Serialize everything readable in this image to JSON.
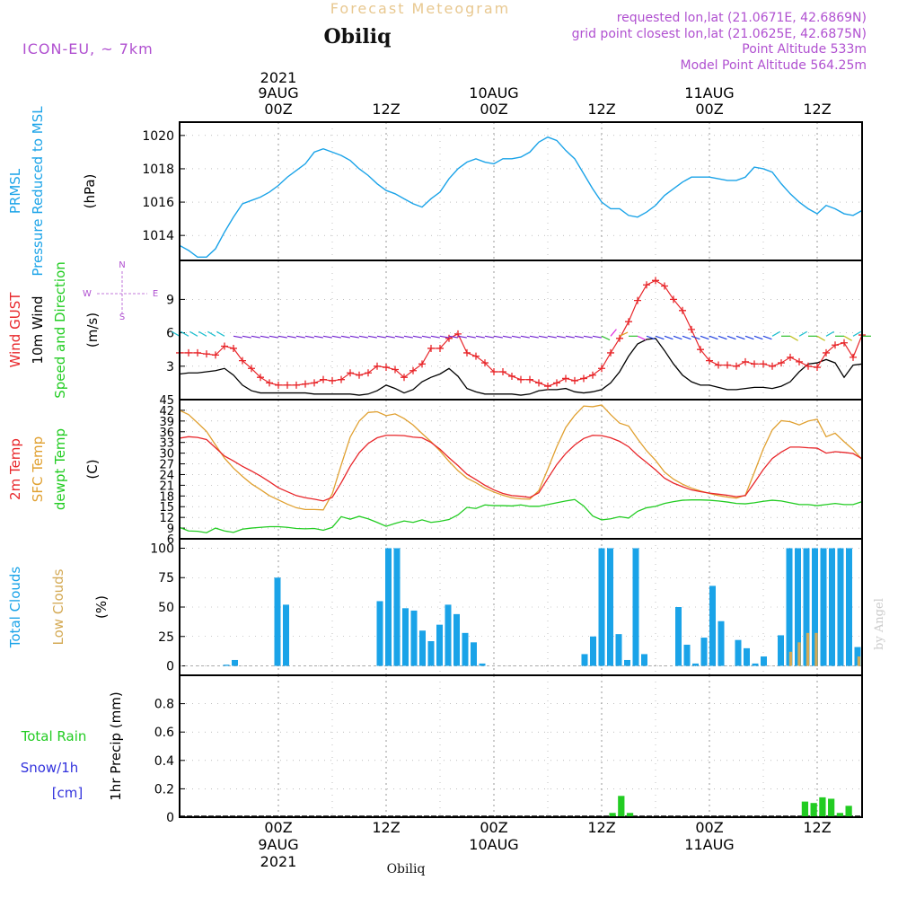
{
  "header": {
    "title": "Forecast Meteogram",
    "location": "Obiliq",
    "model": "ICON-EU, ~ 7km",
    "requested": "requested lon,lat (21.0671E, 42.6869N)",
    "grid_point": "grid point closest lon,lat (21.0625E, 42.6875N)",
    "point_altitude": "Point Altitude 533m",
    "model_altitude": "Model Point Altitude 564.25m",
    "footer_location": "Obiliq",
    "credit": "by Angel"
  },
  "colors": {
    "pressure": "#1aa3e8",
    "gust": "#e8262a",
    "wind": "#000000",
    "sfc_temp": "#e0a030",
    "temp2m": "#e8262a",
    "dewpt": "#22cc22",
    "total_cloud": "#1aa3e8",
    "low_cloud": "#d4aa55",
    "rain": "#22cc22",
    "snow": "#3333dd",
    "purple": "#b050d0"
  },
  "chart_data": {
    "time_axis": {
      "top_labels": [
        {
          "line1": "2021",
          "line2": "9AUG",
          "line3": "00Z",
          "hour": 0
        },
        {
          "line1": "",
          "line2": "",
          "line3": "12Z",
          "hour": 12
        },
        {
          "line1": "",
          "line2": "10AUG",
          "line3": "00Z",
          "hour": 24
        },
        {
          "line1": "",
          "line2": "",
          "line3": "12Z",
          "hour": 36
        },
        {
          "line1": "",
          "line2": "11AUG",
          "line3": "00Z",
          "hour": 48
        },
        {
          "line1": "",
          "line2": "",
          "line3": "12Z",
          "hour": 60
        }
      ],
      "bottom_labels": [
        {
          "line1": "00Z",
          "line2": "9AUG",
          "line3": "2021",
          "hour": 0
        },
        {
          "line1": "12Z",
          "line2": "",
          "line3": "",
          "hour": 12
        },
        {
          "line1": "00Z",
          "line2": "10AUG",
          "line3": "",
          "hour": 24
        },
        {
          "line1": "12Z",
          "line2": "",
          "line3": "",
          "hour": 36
        },
        {
          "line1": "00Z",
          "line2": "11AUG",
          "line3": "",
          "hour": 48
        },
        {
          "line1": "12Z",
          "line2": "",
          "line3": "",
          "hour": 60
        }
      ],
      "start_hour": -11,
      "end_hour": 65
    },
    "panels": [
      {
        "id": "pressure",
        "type": "line",
        "labels": [
          "PRMSL",
          "Pressure Reduced to MSL"
        ],
        "unit": "(hPa)",
        "ylim": [
          1012.5,
          1020.8
        ],
        "yticks": [
          1014,
          1016,
          1018,
          1020
        ],
        "series": [
          {
            "x": [
              -11,
              -10,
              -9,
              -8,
              -7,
              -6,
              -5,
              -4,
              -3,
              -2,
              -1,
              0,
              1,
              2,
              3,
              4,
              5,
              6,
              7,
              8,
              9,
              10,
              11,
              12,
              13,
              14,
              15,
              16,
              17,
              18,
              19,
              20,
              21,
              22,
              23,
              24,
              25,
              26,
              27,
              28,
              29,
              30,
              31,
              32,
              33,
              34,
              35,
              36,
              37,
              38,
              39,
              40,
              41,
              42,
              43,
              44,
              45,
              46,
              47,
              48,
              49,
              50,
              51,
              52,
              53,
              54,
              55,
              56,
              57,
              58,
              59,
              60,
              61,
              62,
              63,
              64,
              65
            ],
            "values": [
              1013.4,
              1013.1,
              1012.7,
              1012.7,
              1013.2,
              1014.2,
              1015.1,
              1015.9,
              1016.1,
              1016.3,
              1016.6,
              1017.0,
              1017.5,
              1017.9,
              1018.3,
              1019.0,
              1019.2,
              1019.0,
              1018.8,
              1018.5,
              1018.0,
              1017.6,
              1017.1,
              1016.7,
              1016.5,
              1016.2,
              1015.9,
              1015.7,
              1016.2,
              1016.6,
              1017.4,
              1018.0,
              1018.4,
              1018.6,
              1018.4,
              1018.3,
              1018.6,
              1018.6,
              1018.7,
              1019.0,
              1019.6,
              1019.9,
              1019.7,
              1019.1,
              1018.6,
              1017.7,
              1016.8,
              1016.0,
              1015.6,
              1015.6,
              1015.2,
              1015.1,
              1015.4,
              1015.8,
              1016.4,
              1016.8,
              1017.2,
              1017.5,
              1017.5,
              1017.5,
              1017.4,
              1017.3,
              1017.3,
              1017.5,
              1018.1,
              1018.0,
              1017.8,
              1017.1,
              1016.5,
              1016.0,
              1015.6,
              1015.3,
              1015.8,
              1015.6,
              1015.3,
              1015.2,
              1015.5
            ]
          }
        ]
      },
      {
        "id": "wind",
        "type": "line",
        "labels": [
          "Wind GUST",
          "10m Wind",
          "Speed and Direction"
        ],
        "unit": "(m/s)",
        "compass": {
          "n": "N",
          "s": "S",
          "w": "W",
          "e": "E"
        },
        "ylim": [
          0,
          12.5
        ],
        "yticks": [
          3,
          6,
          9
        ],
        "gust": [
          4.2,
          4.2,
          4.2,
          4.1,
          4.0,
          4.8,
          4.6,
          3.5,
          2.8,
          2.0,
          1.5,
          1.3,
          1.3,
          1.3,
          1.4,
          1.5,
          1.8,
          1.7,
          1.8,
          2.4,
          2.2,
          2.4,
          3.0,
          2.9,
          2.7,
          2.0,
          2.6,
          3.2,
          4.6,
          4.6,
          5.5,
          5.9,
          4.2,
          3.9,
          3.3,
          2.5,
          2.5,
          2.1,
          1.8,
          1.8,
          1.5,
          1.2,
          1.5,
          1.9,
          1.7,
          1.9,
          2.2,
          2.8,
          4.2,
          5.5,
          7.0,
          8.9,
          10.3,
          10.7,
          10.2,
          9.0,
          8.0,
          6.3,
          4.5,
          3.5,
          3.1,
          3.1,
          3.0,
          3.4,
          3.2,
          3.2,
          3.0,
          3.3,
          3.8,
          3.4,
          3.0,
          2.9,
          4.2,
          4.9,
          5.1,
          3.8,
          5.8
        ],
        "wind10m": [
          2.3,
          2.4,
          2.4,
          2.5,
          2.6,
          2.8,
          2.2,
          1.3,
          0.8,
          0.6,
          0.6,
          0.6,
          0.6,
          0.6,
          0.6,
          0.5,
          0.5,
          0.5,
          0.5,
          0.5,
          0.4,
          0.5,
          0.8,
          1.3,
          1.0,
          0.6,
          0.9,
          1.6,
          2.0,
          2.3,
          2.8,
          2.1,
          1.0,
          0.7,
          0.5,
          0.5,
          0.5,
          0.5,
          0.4,
          0.5,
          0.8,
          0.9,
          0.9,
          1.0,
          0.7,
          0.6,
          0.7,
          0.9,
          1.5,
          2.5,
          3.9,
          5.0,
          5.4,
          5.5,
          4.4,
          3.2,
          2.2,
          1.6,
          1.3,
          1.3,
          1.1,
          0.9,
          0.9,
          1.0,
          1.1,
          1.1,
          1.0,
          1.2,
          1.6,
          2.5,
          3.2,
          3.3,
          3.6,
          3.3,
          2.0,
          3.1,
          3.2
        ],
        "arrow_hours": [
          -11,
          -10,
          -9,
          -8,
          -7,
          -6,
          -5,
          -4,
          -3,
          -2,
          -1,
          0,
          1,
          2,
          3,
          4,
          5,
          6,
          7,
          8,
          9,
          10,
          11,
          12,
          13,
          14,
          15,
          16,
          17,
          18,
          19,
          20,
          21,
          22,
          23,
          24,
          25,
          26,
          27,
          28,
          29,
          30,
          31,
          32,
          33,
          34,
          35,
          36,
          37,
          38,
          39,
          40,
          41,
          42,
          43,
          44,
          45,
          46,
          47,
          48,
          49,
          50,
          51,
          52,
          53,
          54,
          55,
          56,
          57,
          58,
          59,
          60,
          61,
          62,
          63,
          64,
          65
        ]
      },
      {
        "id": "temperature",
        "type": "line",
        "labels": [
          "2m Temp",
          "SFC Temp",
          "dewpt Temp"
        ],
        "unit": "(C)",
        "ylim": [
          6,
          45
        ],
        "yticks": [
          6,
          9,
          12,
          15,
          18,
          21,
          24,
          27,
          30,
          33,
          36,
          39,
          42,
          45
        ],
        "temp2m": [
          34.2,
          34.6,
          34.4,
          33.8,
          31.5,
          29.2,
          27.8,
          26.3,
          25.0,
          23.6,
          22.0,
          20.3,
          19.2,
          18.1,
          17.5,
          17.1,
          16.6,
          17.6,
          21.7,
          26.3,
          30.1,
          32.7,
          34.3,
          35.0,
          35.0,
          34.9,
          34.5,
          34.3,
          33.0,
          31.1,
          28.7,
          26.5,
          24.1,
          22.6,
          21.0,
          19.7,
          18.7,
          18.1,
          17.9,
          17.6,
          18.9,
          22.9,
          26.8,
          29.9,
          32.3,
          34.1,
          35.0,
          34.9,
          34.3,
          33.3,
          31.8,
          29.4,
          27.4,
          25.3,
          23.0,
          21.6,
          20.6,
          19.7,
          19.2,
          18.8,
          18.5,
          18.2,
          17.8,
          18.1,
          21.7,
          25.4,
          28.5,
          30.3,
          31.7,
          31.7,
          31.5,
          31.4,
          30.0,
          30.4,
          30.2,
          29.9,
          28.4
        ],
        "sfc_temp": [
          42.0,
          40.8,
          38.5,
          36.1,
          32.3,
          28.6,
          25.8,
          23.5,
          21.4,
          19.8,
          18.1,
          16.9,
          15.7,
          14.7,
          14.2,
          14.2,
          14.1,
          18.6,
          26.7,
          34.5,
          39.0,
          41.4,
          41.6,
          40.5,
          41.0,
          39.7,
          37.9,
          35.5,
          33.2,
          30.6,
          27.7,
          25.1,
          23.0,
          21.7,
          20.2,
          19.1,
          18.2,
          17.5,
          17.2,
          17.1,
          19.5,
          25.5,
          31.8,
          37.2,
          40.6,
          43.2,
          43.0,
          43.5,
          40.8,
          38.4,
          37.6,
          34.0,
          30.7,
          28.0,
          24.7,
          22.7,
          21.3,
          20.2,
          19.4,
          18.7,
          18.1,
          17.7,
          17.4,
          18.2,
          24.6,
          31.2,
          36.5,
          39.1,
          38.8,
          37.9,
          39.0,
          39.5,
          34.6,
          35.6,
          33.2,
          31.0,
          28.2
        ],
        "dewpt": [
          9.2,
          8.2,
          8.1,
          7.7,
          9.0,
          8.2,
          7.8,
          8.7,
          9.0,
          9.2,
          9.4,
          9.4,
          9.2,
          8.9,
          8.8,
          8.9,
          8.4,
          9.2,
          12.2,
          11.5,
          12.3,
          11.6,
          10.6,
          9.5,
          10.3,
          11.0,
          10.6,
          11.3,
          10.6,
          10.9,
          11.4,
          12.7,
          14.8,
          14.5,
          15.5,
          15.3,
          15.3,
          15.2,
          15.5,
          15.1,
          15.1,
          15.6,
          16.1,
          16.6,
          17.0,
          15.2,
          12.4,
          11.3,
          11.6,
          12.2,
          11.8,
          13.7,
          14.7,
          15.1,
          15.9,
          16.4,
          16.8,
          16.9,
          16.9,
          16.8,
          16.6,
          16.3,
          15.9,
          15.8,
          16.1,
          16.5,
          16.8,
          16.6,
          16.1,
          15.6,
          15.6,
          15.3,
          15.6,
          15.9,
          15.6,
          15.6,
          16.4
        ]
      },
      {
        "id": "clouds",
        "type": "bar",
        "labels": [
          "Total Clouds",
          "Low Clouds"
        ],
        "unit": "(%)",
        "ylim": [
          -8,
          108
        ],
        "yticks": [
          0,
          25,
          50,
          75,
          100
        ],
        "total": [
          0,
          0,
          0,
          0,
          0,
          1,
          5,
          0,
          0,
          0,
          0,
          75,
          52,
          0,
          0,
          0,
          0,
          0,
          0,
          0,
          0,
          0,
          0,
          55,
          100,
          100,
          49,
          47,
          30,
          21,
          35,
          52,
          44,
          28,
          20,
          2,
          0,
          0,
          0,
          0,
          0,
          0,
          0,
          0,
          0,
          0,
          0,
          10,
          25,
          100,
          100,
          27,
          5,
          100,
          10,
          0,
          0,
          0,
          50,
          18,
          2,
          24,
          68,
          38,
          0,
          22,
          15,
          2,
          8,
          0,
          26,
          100,
          100,
          100,
          100,
          100,
          100,
          100,
          100,
          16
        ],
        "low": [
          0,
          0,
          0,
          0,
          0,
          0,
          0,
          0,
          0,
          0,
          0,
          0,
          0,
          0,
          0,
          0,
          0,
          0,
          0,
          0,
          0,
          0,
          0,
          0,
          0,
          0,
          0,
          0,
          0,
          0,
          0,
          0,
          0,
          0,
          0,
          0,
          0,
          0,
          0,
          0,
          0,
          0,
          0,
          0,
          0,
          0,
          0,
          0,
          0,
          0,
          0,
          0,
          0,
          0,
          0,
          0,
          0,
          0,
          0,
          0,
          0,
          0,
          0,
          0,
          0,
          0,
          0,
          0,
          0,
          0,
          0,
          12,
          20,
          28,
          28,
          0,
          0,
          0,
          0,
          8
        ]
      },
      {
        "id": "precip",
        "type": "bar",
        "labels": [
          "Total Rain",
          "Snow/1h",
          "[cm]"
        ],
        "unit": "1hr Precip (mm)",
        "ylim": [
          0,
          1.0
        ],
        "yticks": [
          "0",
          "0.2",
          "0.4",
          "0.6",
          "0.8"
        ],
        "rain": [
          0,
          0,
          0,
          0,
          0,
          0,
          0,
          0,
          0,
          0,
          0,
          0,
          0,
          0,
          0,
          0,
          0,
          0,
          0,
          0,
          0,
          0,
          0,
          0,
          0,
          0,
          0,
          0,
          0,
          0,
          0,
          0,
          0,
          0,
          0,
          0,
          0,
          0,
          0,
          0,
          0,
          0,
          0,
          0,
          0,
          0,
          0,
          0,
          0,
          0.03,
          0.15,
          0.03,
          0,
          0,
          0,
          0,
          0,
          0,
          0,
          0,
          0,
          0,
          0,
          0,
          0,
          0,
          0,
          0,
          0,
          0,
          0,
          0.11,
          0.1,
          0.14,
          0.13,
          0.03,
          0.08,
          0
        ]
      }
    ]
  }
}
